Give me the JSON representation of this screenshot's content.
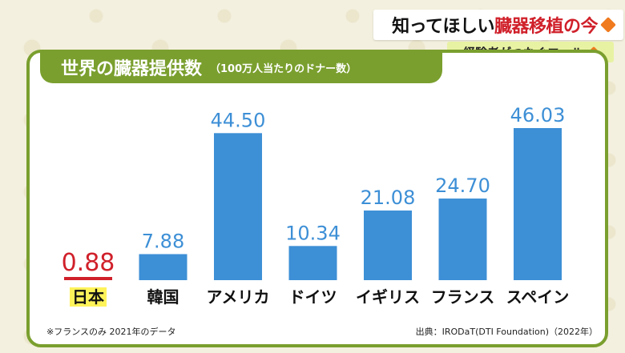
{
  "header": {
    "title_black": "知ってほしい",
    "title_red": "臓器移植の今",
    "subtitle": "経験者がつなぐエール",
    "accent": "#f07a1e"
  },
  "chart_title": {
    "main": "世界の臓器提供数",
    "sub": "（100万人当たりのドナー数）"
  },
  "chart_data": {
    "type": "bar",
    "categories": [
      "日本",
      "韓国",
      "アメリカ",
      "ドイツ",
      "イギリス",
      "フランス",
      "スペイン"
    ],
    "values": [
      0.88,
      7.88,
      44.5,
      10.34,
      21.08,
      24.7,
      46.03
    ],
    "value_labels": [
      "0.88",
      "7.88",
      "44.50",
      "10.34",
      "21.08",
      "24.70",
      "46.03"
    ],
    "highlight_index": 0,
    "colors": {
      "bar": "#3d8fd6",
      "highlight": "#d0202a",
      "value_text": "#3d8fd6",
      "highlight_label_bg": "#fff35a"
    },
    "ylim": [
      0,
      50
    ],
    "grid": false
  },
  "footnote": "※フランスのみ 2021年のデータ",
  "source": "出典：IRODaT(DTI Foundation)（2022年）"
}
